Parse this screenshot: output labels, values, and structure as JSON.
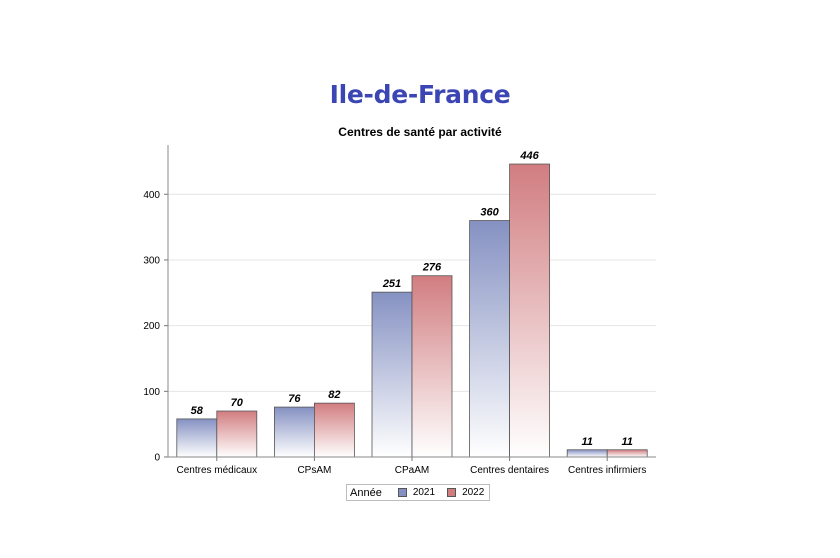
{
  "page_title": "Ile-de-France",
  "colors": {
    "title": "#3b46b4",
    "series_2021": "#8591c2",
    "series_2022": "#d17d80"
  },
  "chart_data": {
    "type": "bar",
    "title": "Centres de santé par activité",
    "xlabel": "",
    "ylabel": "",
    "ylim": [
      0,
      475
    ],
    "yticks": [
      0,
      100,
      200,
      300,
      400
    ],
    "grid": true,
    "legend_title": "Année",
    "legend_position": "bottom",
    "categories": [
      "Centres médicaux",
      "CPsAM",
      "CPaAM",
      "Centres dentaires",
      "Centres infirmiers"
    ],
    "series": [
      {
        "name": "2021",
        "values": [
          58,
          76,
          251,
          360,
          11
        ]
      },
      {
        "name": "2022",
        "values": [
          70,
          82,
          276,
          446,
          11
        ]
      }
    ]
  }
}
